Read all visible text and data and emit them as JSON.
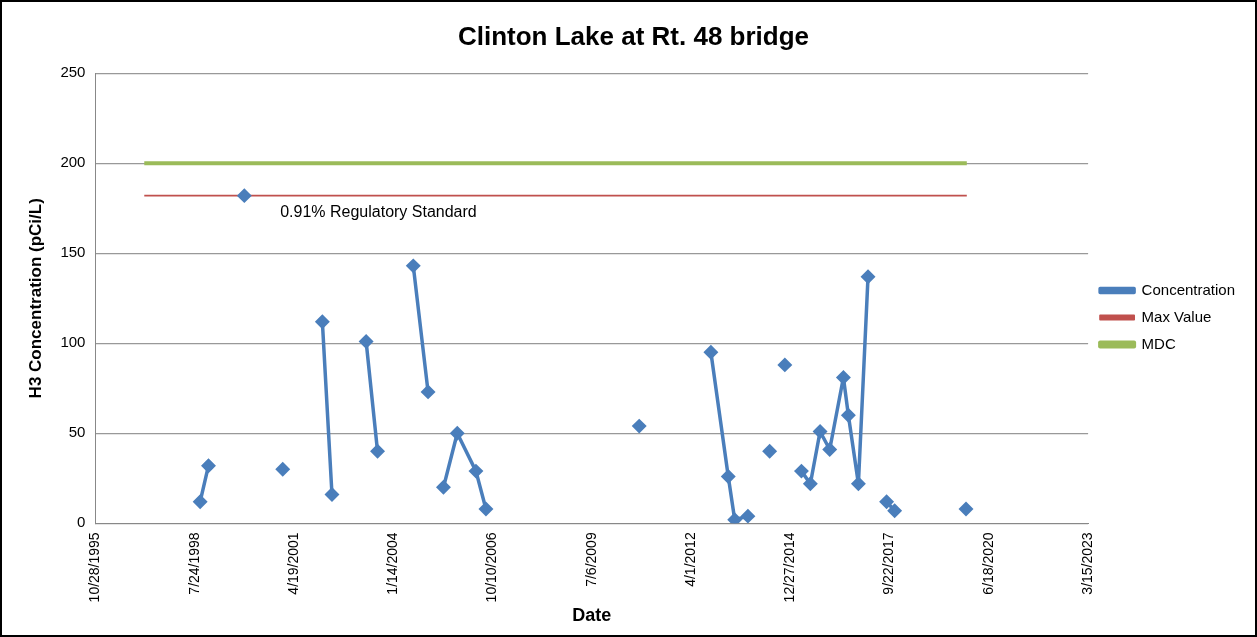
{
  "chart_data": {
    "type": "line",
    "title": "Clinton Lake at Rt. 48 bridge",
    "xlabel": "Date",
    "ylabel": "H3 Concentration (pCi/L)",
    "xlim": [
      "1995-10-28",
      "2023-03-15"
    ],
    "xticks": [
      {
        "value": "1995-10-28",
        "label": "10/28/1995"
      },
      {
        "value": "1998-07-24",
        "label": "7/24/1998"
      },
      {
        "value": "2001-04-19",
        "label": "4/19/2001"
      },
      {
        "value": "2004-01-14",
        "label": "1/14/2004"
      },
      {
        "value": "2006-10-10",
        "label": "10/10/2006"
      },
      {
        "value": "2009-07-06",
        "label": "7/6/2009"
      },
      {
        "value": "2012-04-01",
        "label": "4/1/2012"
      },
      {
        "value": "2014-12-27",
        "label": "12/27/2014"
      },
      {
        "value": "2017-09-22",
        "label": "9/22/2017"
      },
      {
        "value": "2020-06-18",
        "label": "6/18/2020"
      },
      {
        "value": "2023-03-15",
        "label": "3/15/2023"
      }
    ],
    "ylim": [
      0,
      250
    ],
    "yticks": [
      0,
      50,
      100,
      150,
      200,
      250
    ],
    "grid": "y",
    "legend": "right",
    "series": [
      {
        "name": "Concentration",
        "color": "#4a7ebb",
        "marker": "diamond",
        "x": [
          "1998-09-17",
          "1998-12-10",
          "1999-04-01",
          "1999-12-06",
          "2000-06-01",
          "2000-12-27",
          "2001-06-01",
          "2002-01-30",
          "2002-05-07",
          "2002-10-01",
          "2003-04-16",
          "2003-08-09",
          "2004-01-01",
          "2004-08-03",
          "2004-12-30",
          "2005-03-01",
          "2005-06-03",
          "2005-10-20",
          "2006-04-26",
          "2006-08-05",
          "2008-01-01",
          "2010-10-27",
          "2011-06-01",
          "2012-10-18",
          "2013-04-11",
          "2013-06-15",
          "2013-10-26",
          "2014-02-01",
          "2014-06-02",
          "2014-08-01",
          "2014-11-02",
          "2015-01-01",
          "2015-04-18",
          "2015-07-17",
          "2015-10-23",
          "2016-01-28",
          "2016-06-14",
          "2016-08-03",
          "2016-11-12",
          "2017-02-17",
          "2017-05-01",
          "2017-08-23",
          "2017-11-12",
          "2018-06-01",
          "2019-11-01"
        ],
        "values": [
          12,
          32,
          null,
          182,
          null,
          30,
          null,
          112,
          16,
          null,
          101,
          40,
          null,
          143,
          73,
          null,
          20,
          50,
          29,
          8,
          null,
          54,
          null,
          95,
          26,
          2,
          4,
          null,
          40,
          null,
          88,
          null,
          29,
          22,
          51,
          41,
          81,
          60,
          22,
          137,
          null,
          12,
          7,
          null,
          8
        ]
      },
      {
        "name": "Max Value",
        "color": "#c0504d",
        "marker": "none",
        "x": [
          "1997-03-03",
          "2019-11-09"
        ],
        "values": [
          182,
          182
        ]
      },
      {
        "name": "MDC",
        "color": "#9bbb59",
        "marker": "none",
        "x": [
          "1997-03-03",
          "2019-11-09"
        ],
        "values": [
          200,
          200
        ]
      }
    ],
    "annotations": [
      {
        "text": "0.91% Regulatory Standard",
        "x": "2000-12-01",
        "y": 182
      }
    ]
  }
}
